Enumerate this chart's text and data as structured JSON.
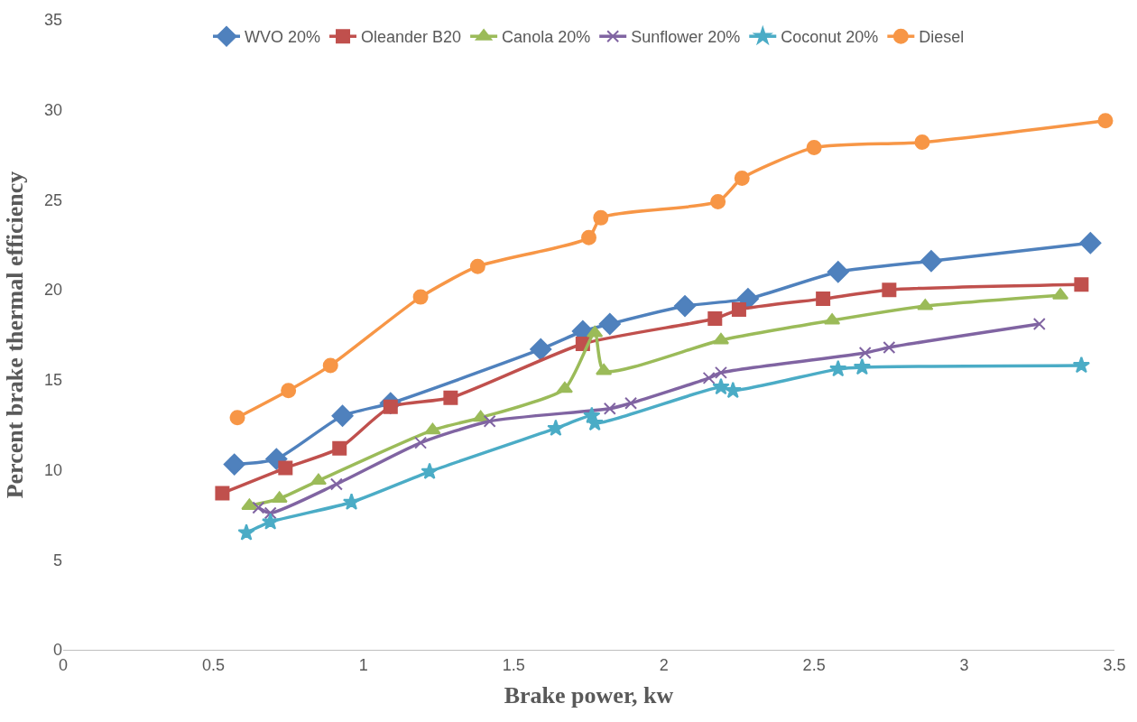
{
  "chart_data": {
    "type": "line",
    "xlabel": "Brake power, kw",
    "ylabel": "Percent brake thermal efficiency",
    "xlim": [
      0,
      3.5
    ],
    "xticks": [
      0,
      0.5,
      1,
      1.5,
      2,
      2.5,
      3,
      3.5
    ],
    "ylim": [
      0,
      35
    ],
    "yticks": [
      0,
      5,
      10,
      15,
      20,
      25,
      30,
      35
    ],
    "grid": false,
    "legend": "top",
    "line_style": "solid",
    "series": [
      {
        "name": "WVO 20%",
        "color": "#4f81bd",
        "marker": "diamond",
        "x": [
          0.57,
          0.71,
          0.93,
          1.09,
          1.59,
          1.73,
          1.82,
          2.07,
          2.28,
          2.58,
          2.89,
          3.42
        ],
        "values": [
          10.3,
          10.6,
          13.0,
          13.7,
          16.7,
          17.7,
          18.1,
          19.1,
          19.5,
          21.0,
          21.6,
          22.6
        ]
      },
      {
        "name": "Oleander B20",
        "color": "#c0504d",
        "marker": "square",
        "x": [
          0.53,
          0.74,
          0.92,
          1.09,
          1.29,
          1.73,
          2.17,
          2.25,
          2.53,
          2.75,
          3.39
        ],
        "values": [
          8.7,
          10.1,
          11.2,
          13.5,
          14.0,
          17.0,
          18.4,
          18.9,
          19.5,
          20.0,
          20.3
        ]
      },
      {
        "name": "Canola 20%",
        "color": "#9bbb59",
        "marker": "triangle",
        "x": [
          0.62,
          0.72,
          0.85,
          1.23,
          1.39,
          1.67,
          1.77,
          1.8,
          2.19,
          2.56,
          2.87,
          3.32
        ],
        "values": [
          8.0,
          8.4,
          9.4,
          12.2,
          12.9,
          14.5,
          17.6,
          15.5,
          17.2,
          18.3,
          19.1,
          19.7
        ]
      },
      {
        "name": "Sunflower 20%",
        "color": "#8064a2",
        "marker": "cross",
        "x": [
          0.65,
          0.69,
          0.91,
          1.19,
          1.42,
          1.82,
          1.89,
          2.15,
          2.19,
          2.67,
          2.75,
          3.25
        ],
        "values": [
          7.9,
          7.6,
          9.2,
          11.5,
          12.7,
          13.4,
          13.7,
          15.1,
          15.4,
          16.5,
          16.8,
          18.1
        ]
      },
      {
        "name": "Coconut 20%",
        "color": "#4bacc6",
        "marker": "star",
        "x": [
          0.61,
          0.69,
          0.96,
          1.22,
          1.64,
          1.76,
          1.77,
          2.19,
          2.23,
          2.58,
          2.66,
          3.39
        ],
        "values": [
          6.5,
          7.1,
          8.2,
          9.9,
          12.3,
          13.0,
          12.6,
          14.6,
          14.4,
          15.6,
          15.7,
          15.8
        ]
      },
      {
        "name": "Diesel",
        "color": "#f79646",
        "marker": "circle",
        "x": [
          0.58,
          0.75,
          0.89,
          1.19,
          1.38,
          1.75,
          1.79,
          2.18,
          2.26,
          2.5,
          2.86,
          3.47
        ],
        "values": [
          12.9,
          14.4,
          15.8,
          19.6,
          21.3,
          22.9,
          24.0,
          24.9,
          26.2,
          27.9,
          28.2,
          29.4
        ]
      }
    ]
  }
}
